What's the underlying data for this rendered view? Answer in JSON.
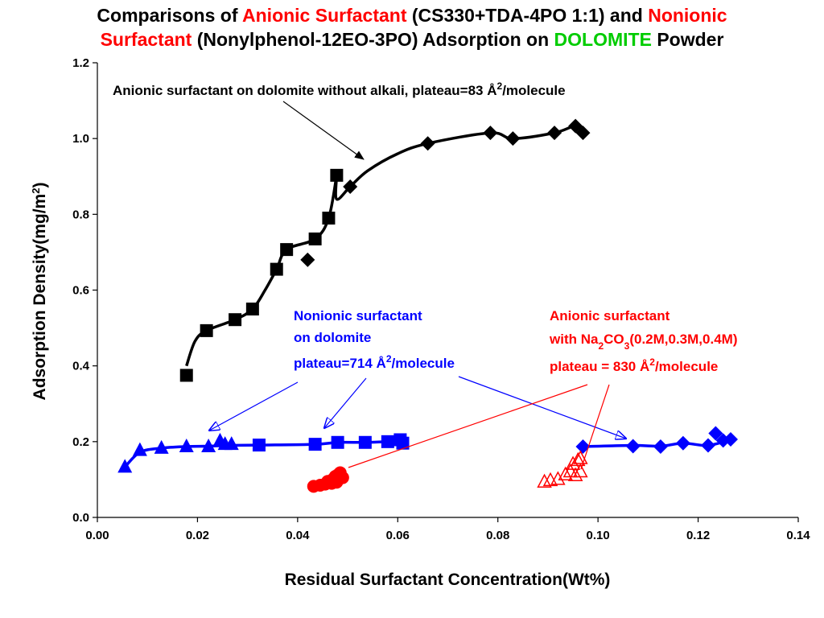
{
  "title": {
    "p1": "Comparisons of ",
    "p2": "Anionic Surfactant",
    "p3": " (CS330+TDA-4PO 1:1) and ",
    "p4": "Nonionic",
    "p5": "Surfactant",
    "p6": " (Nonylphenol-12EO-3PO) Adsorption on ",
    "p7": "DOLOMITE",
    "p8": " Powder"
  },
  "colors": {
    "black": "#000000",
    "blue": "#0000ff",
    "red": "#ff0000",
    "green": "#00cc00"
  },
  "annotations": {
    "anionic_no_alkali": {
      "pre": "Anionic surfactant on dolomite without alkali, plateau=83 Å",
      "sup": "2",
      "post": "/molecule"
    },
    "nonionic": {
      "line1": "Nonionic surfactant",
      "line2": "on  dolomite",
      "line3_pre": "plateau=714 Å",
      "line3_sup": "2",
      "line3_post": "/molecule"
    },
    "anionic_alkali": {
      "line1": "Anionic surfactant",
      "line2_pre": "with Na",
      "line2_sub1": "2",
      "line2_mid": "CO",
      "line2_sub2": "3",
      "line2_post": "(0.2M,0.3M,0.4M)",
      "line3_pre": "plateau = 830  Å",
      "line3_sup": "2",
      "line3_post": "/molecule"
    }
  },
  "chart_data": {
    "type": "scatter",
    "xlabel": "Residual Surfactant Concentration(Wt%)",
    "ylabel_pre": "Adsorption Density(mg/m",
    "ylabel_sup": "2",
    "ylabel_post": ")",
    "xlim": [
      0,
      0.14
    ],
    "ylim": [
      0,
      1.2
    ],
    "x_ticks": [
      "0.00",
      "0.02",
      "0.04",
      "0.06",
      "0.08",
      "0.10",
      "0.12",
      "0.14"
    ],
    "y_ticks": [
      "0.0",
      "0.2",
      "0.4",
      "0.6",
      "0.8",
      "1.0",
      "1.2"
    ],
    "series": [
      {
        "color": "#000000",
        "marker": "square",
        "points": [
          [
            0.0178,
            0.375
          ],
          [
            0.0218,
            0.493
          ],
          [
            0.0275,
            0.522
          ],
          [
            0.031,
            0.55
          ],
          [
            0.0358,
            0.655
          ],
          [
            0.0378,
            0.707
          ],
          [
            0.0435,
            0.735
          ],
          [
            0.0462,
            0.79
          ],
          [
            0.0478,
            0.903
          ]
        ]
      },
      {
        "color": "#000000",
        "marker": "diamond",
        "points": [
          [
            0.042,
            0.68
          ],
          [
            0.0505,
            0.873
          ],
          [
            0.066,
            0.987
          ],
          [
            0.0785,
            1.015
          ],
          [
            0.083,
            1.0
          ],
          [
            0.0913,
            1.015
          ],
          [
            0.0955,
            1.033
          ],
          [
            0.097,
            1.015
          ]
        ]
      },
      {
        "color": "#0000ff",
        "marker": "triangle",
        "points": [
          [
            0.0055,
            0.133
          ],
          [
            0.0085,
            0.177
          ],
          [
            0.0128,
            0.183
          ],
          [
            0.0178,
            0.187
          ],
          [
            0.0222,
            0.187
          ],
          [
            0.0245,
            0.202
          ],
          [
            0.0255,
            0.193
          ],
          [
            0.0268,
            0.193
          ]
        ]
      },
      {
        "color": "#0000ff",
        "marker": "square",
        "points": [
          [
            0.0323,
            0.191
          ],
          [
            0.0435,
            0.193
          ],
          [
            0.048,
            0.198
          ],
          [
            0.0535,
            0.198
          ],
          [
            0.058,
            0.2
          ],
          [
            0.0605,
            0.205
          ],
          [
            0.061,
            0.196
          ]
        ]
      },
      {
        "color": "#0000ff",
        "marker": "diamond",
        "points": [
          [
            0.097,
            0.187
          ],
          [
            0.107,
            0.188
          ],
          [
            0.1125,
            0.187
          ],
          [
            0.117,
            0.196
          ],
          [
            0.122,
            0.19
          ],
          [
            0.1235,
            0.222
          ],
          [
            0.125,
            0.203
          ],
          [
            0.1265,
            0.206
          ]
        ]
      },
      {
        "color": "#ff0000",
        "marker": "circle",
        "points": [
          [
            0.0432,
            0.082
          ],
          [
            0.0445,
            0.085
          ],
          [
            0.0455,
            0.088
          ],
          [
            0.046,
            0.095
          ],
          [
            0.047,
            0.1
          ],
          [
            0.0475,
            0.108
          ],
          [
            0.048,
            0.112
          ],
          [
            0.0485,
            0.118
          ],
          [
            0.049,
            0.105
          ],
          [
            0.0478,
            0.093
          ],
          [
            0.0468,
            0.09
          ]
        ]
      },
      {
        "color": "#ff0000",
        "marker": "triangle-open",
        "points": [
          [
            0.0893,
            0.093
          ],
          [
            0.0905,
            0.097
          ],
          [
            0.092,
            0.1
          ],
          [
            0.0935,
            0.112
          ],
          [
            0.0945,
            0.12
          ],
          [
            0.095,
            0.14
          ],
          [
            0.096,
            0.15
          ],
          [
            0.0965,
            0.155
          ],
          [
            0.0955,
            0.11
          ],
          [
            0.0965,
            0.12
          ]
        ]
      }
    ],
    "curves": [
      {
        "color": "#000000",
        "points": [
          [
            0.0178,
            0.4
          ],
          [
            0.0195,
            0.465
          ],
          [
            0.0218,
            0.493
          ],
          [
            0.0275,
            0.522
          ],
          [
            0.031,
            0.55
          ],
          [
            0.0335,
            0.6
          ],
          [
            0.0358,
            0.655
          ],
          [
            0.0378,
            0.707
          ],
          [
            0.0435,
            0.735
          ],
          [
            0.0462,
            0.79
          ],
          [
            0.0478,
            0.903
          ]
        ]
      },
      {
        "color": "#000000",
        "points": [
          [
            0.0478,
            0.903
          ],
          [
            0.0478,
            0.84
          ],
          [
            0.0505,
            0.873
          ],
          [
            0.054,
            0.915
          ],
          [
            0.06,
            0.96
          ],
          [
            0.066,
            0.987
          ],
          [
            0.0785,
            1.015
          ],
          [
            0.083,
            1.0
          ],
          [
            0.0913,
            1.015
          ],
          [
            0.0955,
            1.033
          ],
          [
            0.097,
            1.015
          ]
        ]
      },
      {
        "color": "#0000ff",
        "points": [
          [
            0.0055,
            0.133
          ],
          [
            0.0085,
            0.172
          ],
          [
            0.0128,
            0.183
          ],
          [
            0.0178,
            0.187
          ],
          [
            0.0222,
            0.188
          ],
          [
            0.0268,
            0.19
          ],
          [
            0.0323,
            0.191
          ],
          [
            0.0435,
            0.193
          ],
          [
            0.048,
            0.198
          ],
          [
            0.0535,
            0.198
          ],
          [
            0.058,
            0.2
          ],
          [
            0.061,
            0.2
          ]
        ]
      },
      {
        "color": "#0000ff",
        "points": [
          [
            0.097,
            0.187
          ],
          [
            0.107,
            0.19
          ],
          [
            0.1125,
            0.188
          ],
          [
            0.117,
            0.196
          ],
          [
            0.122,
            0.19
          ],
          [
            0.1265,
            0.206
          ]
        ]
      }
    ]
  }
}
